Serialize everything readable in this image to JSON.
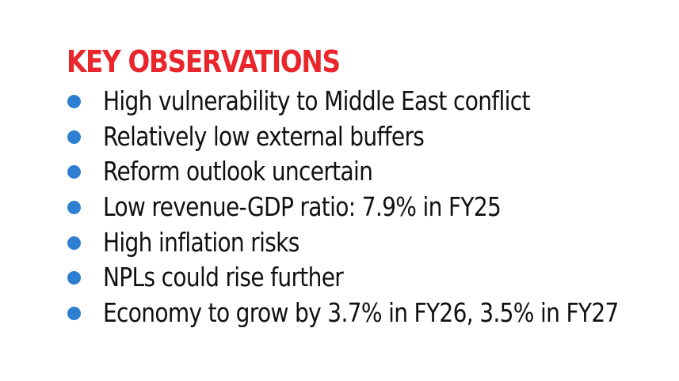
{
  "heading": "KEY OBSERVATIONS",
  "observations": [
    "High vulnerability to Middle East conflict",
    "Relatively low external buffers",
    "Reform outlook uncertain",
    "Low revenue-GDP ratio: 7.9% in FY25",
    "High inflation risks",
    "NPLs could rise further",
    "Economy to grow by 3.7% in FY26, 3.5% in FY27"
  ],
  "colors": {
    "heading": "#e8262b",
    "bullet": "#2e7fd1",
    "text": "#111111",
    "background": "#ffffff"
  }
}
